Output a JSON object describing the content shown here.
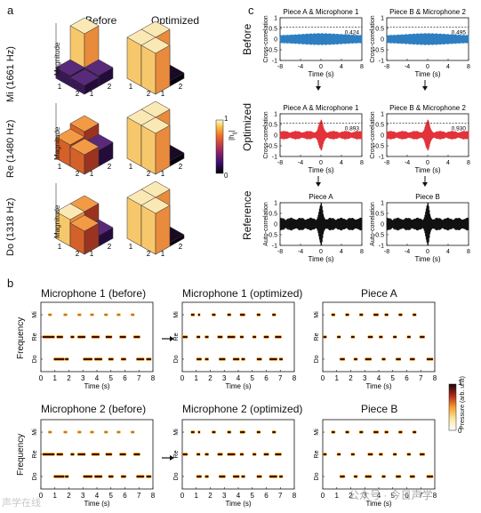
{
  "panel_a": {
    "letter": "a",
    "col_before": "Before",
    "col_optimized": "Optimized",
    "rows": [
      {
        "label": "Mi (1661 Hz)",
        "zlabel": "Magnitude",
        "ticks": [
          "1",
          "2",
          "1",
          "2"
        ]
      },
      {
        "label": "Re (1480 Hz)",
        "zlabel": "Magnitude",
        "ticks": [
          "1",
          "2",
          "1",
          "2"
        ]
      },
      {
        "label": "Do (1318 Hz)",
        "zlabel": "Magnitude",
        "ticks": [
          "1",
          "2",
          "1",
          "2"
        ]
      }
    ],
    "colorbar": {
      "label": "|h",
      "label_sub": "ij",
      "label_end": "|",
      "max": "1",
      "min": "0"
    }
  },
  "panel_c": {
    "letter": "c",
    "col_titles": [
      "Piece A & Microphone 1",
      "Piece B & Microphone 2"
    ],
    "rows": [
      {
        "label": "Before",
        "ylabel": "Cross-correlation",
        "color": "#2d7fc1",
        "values": [
          "0.424",
          "0.495"
        ],
        "titles": [
          "Piece A & Microphone 1",
          "Piece B & Microphone 2"
        ]
      },
      {
        "label": "Optimized",
        "ylabel": "Cross-correlation",
        "color": "#e2333a",
        "values": [
          "0.893",
          "0.930"
        ],
        "titles": [
          "Piece A & Microphone 1",
          "Piece B & Microphone 2"
        ]
      },
      {
        "label": "Reference",
        "ylabel": "Auto-correlation",
        "color": "#111111",
        "values": [
          "",
          ""
        ],
        "titles": [
          "Piece A",
          "Piece B"
        ]
      }
    ],
    "xlabel": "Time (s)",
    "xticks": [
      "-8",
      "-4",
      "0",
      "4",
      "8"
    ],
    "yticks": [
      "1",
      "0.5",
      "0",
      "-0.5",
      "-1"
    ]
  },
  "panel_b": {
    "letter": "b",
    "top_titles": [
      "Microphone 1 (before)",
      "Microphone 1 (optimized)",
      "Piece A"
    ],
    "bottom_titles": [
      "Microphone 2 (before)",
      "Microphone 2 (optimized)",
      "Piece B"
    ],
    "ylabel": "Frequency",
    "yticks": [
      "Mi",
      "Re",
      "Do"
    ],
    "xlabel": "Time (s)",
    "xticks": [
      "0",
      "1",
      "2",
      "3",
      "4",
      "5",
      "6",
      "7",
      "8"
    ],
    "colorbar": {
      "max": "1",
      "min": "0",
      "label": "Pressure (arb. unit)"
    }
  },
  "watermark": "公众号 · 今日声学",
  "watermark_left": "声学在线"
}
